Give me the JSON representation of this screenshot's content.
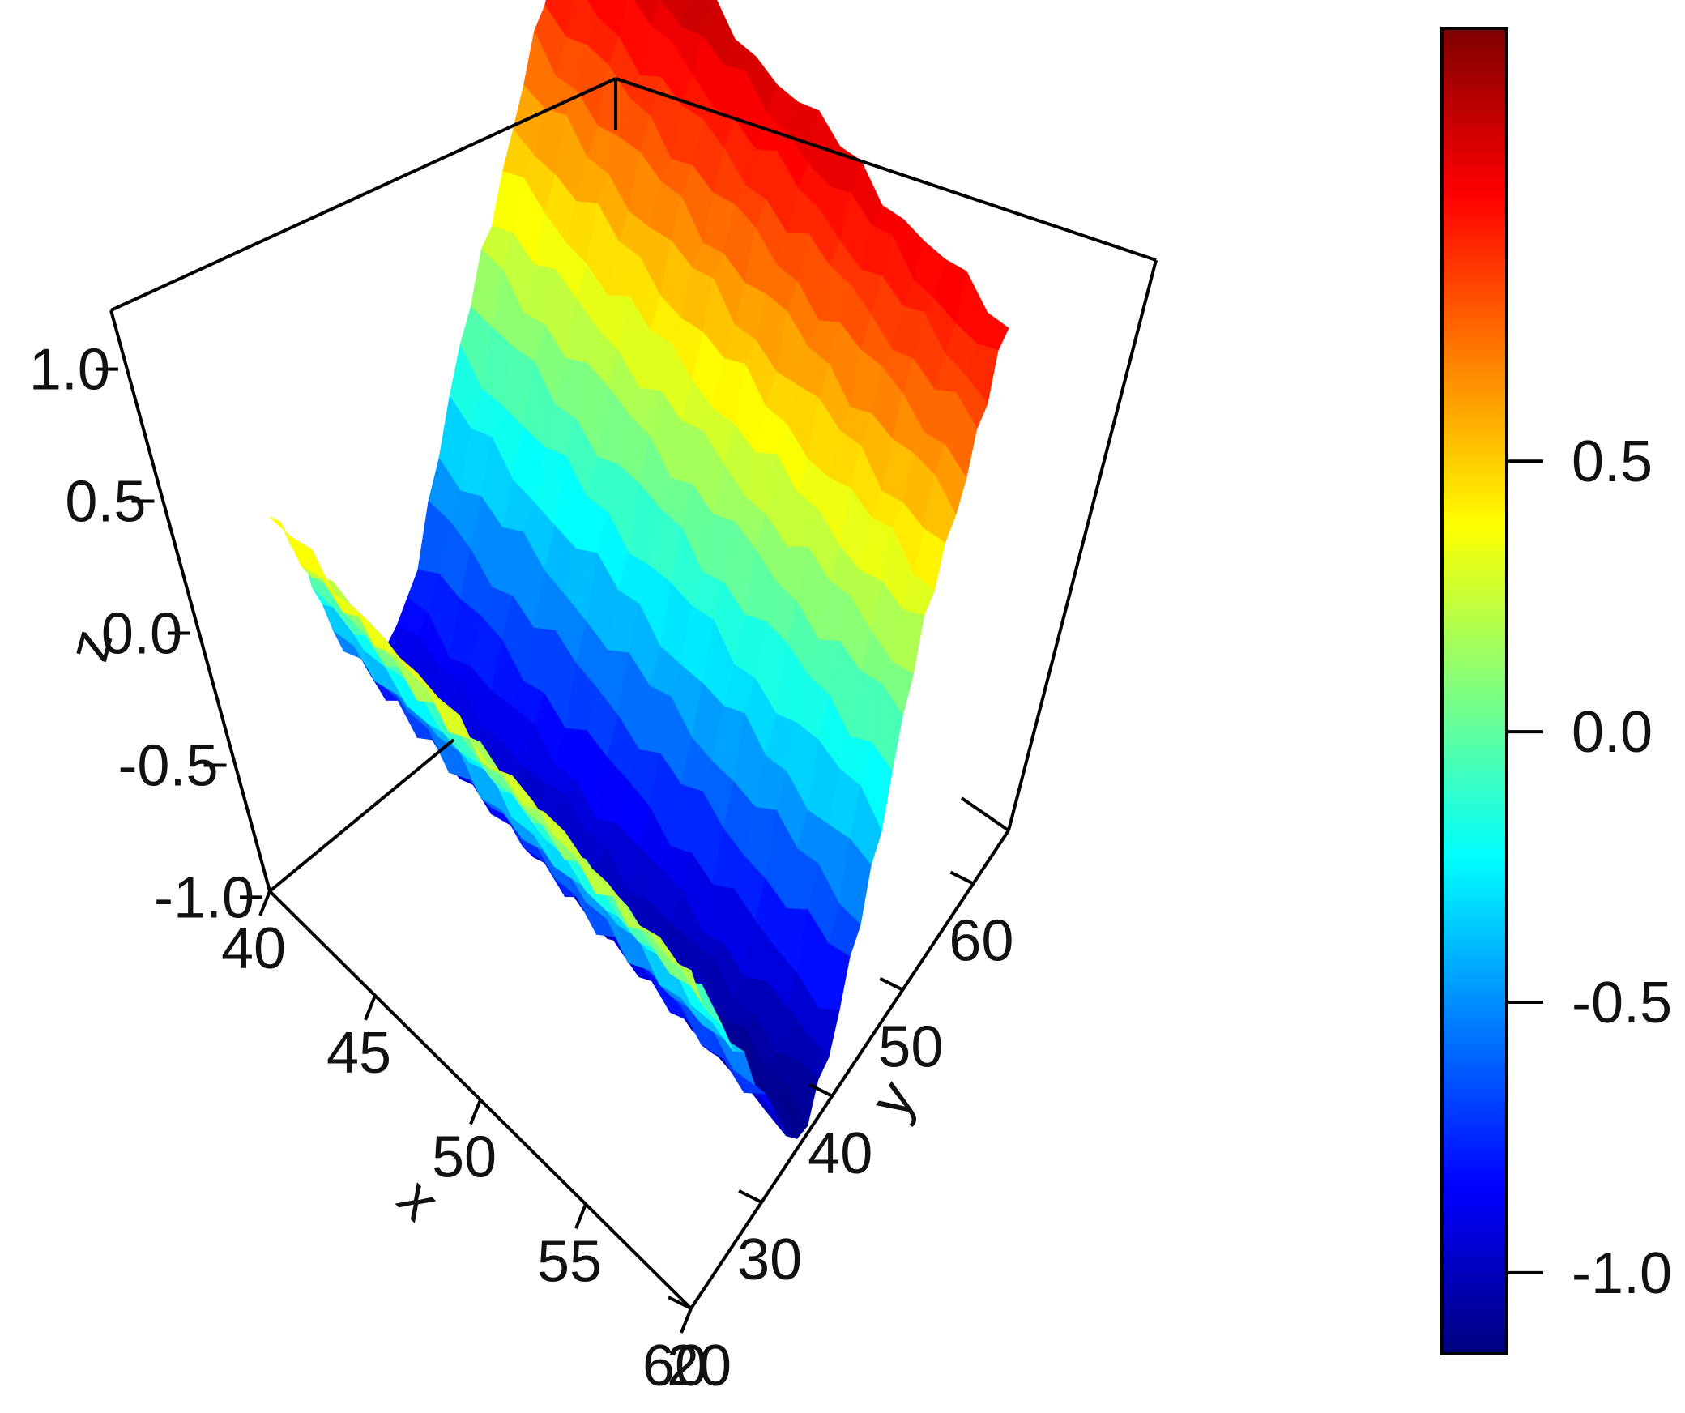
{
  "chart_data": {
    "type": "surface3d",
    "xlabel": "x",
    "ylabel": "y",
    "zlabel": "z",
    "x_ticks": [
      "40",
      "45",
      "50",
      "55",
      "60"
    ],
    "y_ticks": [
      "20",
      "30",
      "40",
      "50",
      "60"
    ],
    "z_ticks": [
      "-1.0",
      "-0.5",
      "0.0",
      "0.5",
      "1.0"
    ],
    "xlim": [
      40,
      60
    ],
    "ylim": [
      20,
      65
    ],
    "zlim": [
      -1.2,
      1.35
    ],
    "colorbar": {
      "ticks": [
        "-1.0",
        "-0.5",
        "0.0",
        "0.5"
      ],
      "range": [
        -1.15,
        1.3
      ],
      "colors": [
        "#00007F",
        "#0000FF",
        "#007FFF",
        "#00FFFF",
        "#7FFF7F",
        "#FFFF00",
        "#FF7F00",
        "#FF0000",
        "#7F0000"
      ]
    },
    "surface": {
      "description_of_shape": "z decreases steeply from the high-y back edge to a trough, then rises again toward the low-y edge",
      "y_profile": {
        "y": [
          20,
          25,
          30,
          35,
          40,
          45,
          50,
          55,
          60,
          65
        ],
        "z": [
          0.45,
          0.0,
          -0.55,
          -0.95,
          -0.8,
          -0.3,
          0.2,
          0.6,
          0.95,
          1.2
        ]
      },
      "x_profile": {
        "x": [
          40,
          45,
          50,
          55,
          60
        ],
        "dz": [
          0.0,
          -0.05,
          -0.1,
          -0.15,
          -0.2
        ]
      }
    }
  }
}
